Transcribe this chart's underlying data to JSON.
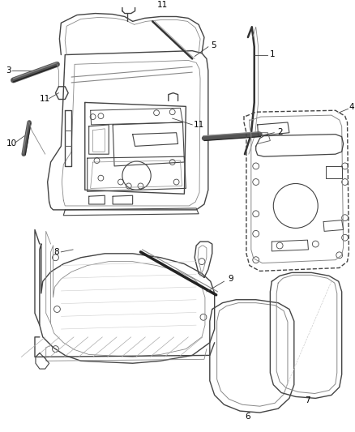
{
  "bg_color": "#ffffff",
  "line_color": "#444444",
  "label_color": "#000000",
  "lw_main": 1.0,
  "lw_thin": 0.6,
  "lw_thick": 1.8
}
